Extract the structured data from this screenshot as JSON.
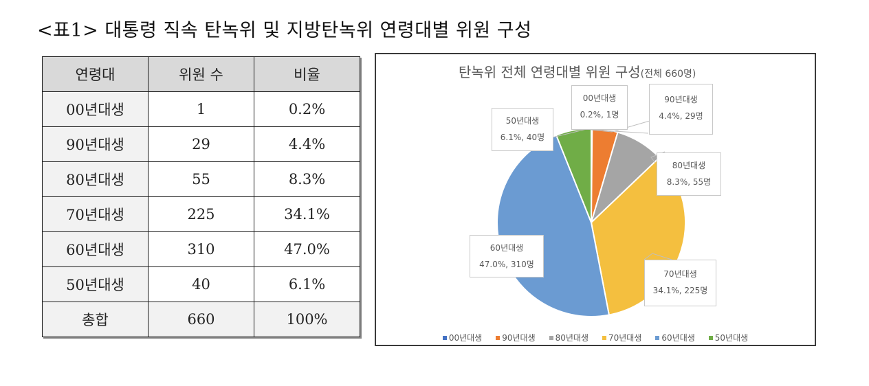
{
  "caption": "<표1> 대통령 직속 탄녹위 및 지방탄녹위 연령대별 위원 구성",
  "table": {
    "headers": [
      "연령대",
      "위원 수",
      "비율"
    ],
    "rows": [
      [
        "00년대생",
        "1",
        "0.2%"
      ],
      [
        "90년대생",
        "29",
        "4.4%"
      ],
      [
        "80년대생",
        "55",
        "8.3%"
      ],
      [
        "70년대생",
        "225",
        "34.1%"
      ],
      [
        "60년대생",
        "310",
        "47.0%"
      ],
      [
        "50년대생",
        "40",
        "6.1%"
      ],
      [
        "총합",
        "660",
        "100%"
      ]
    ]
  },
  "chart": {
    "title": "탄녹위 전체 연령대별 위원 구성",
    "subtitle": "(전체 660명)",
    "labels": [
      {
        "name": "00년대생",
        "value_text": "0.2%, 1명"
      },
      {
        "name": "90년대생",
        "value_text": "4.4%, 29명"
      },
      {
        "name": "80년대생",
        "value_text": "8.3%, 55명"
      },
      {
        "name": "70년대생",
        "value_text": "34.1%, 225명"
      },
      {
        "name": "60년대생",
        "value_text": "47.0%, 310명"
      },
      {
        "name": "50년대생",
        "value_text": "6.1%, 40명"
      }
    ],
    "legend": [
      "00년대생",
      "90년대생",
      "80년대생",
      "70년대생",
      "60년대생",
      "50년대생"
    ],
    "colors": [
      "#4472c4",
      "#ed7d31",
      "#a5a5a5",
      "#f4bf3f",
      "#6b9bd2",
      "#70ad47"
    ]
  },
  "chart_data": {
    "type": "pie",
    "title": "탄녹위 전체 연령대별 위원 구성(전체 660명)",
    "categories": [
      "00년대생",
      "90년대생",
      "80년대생",
      "70년대생",
      "60년대생",
      "50년대생"
    ],
    "values": [
      1,
      29,
      55,
      225,
      310,
      40
    ],
    "percentages": [
      0.2,
      4.4,
      8.3,
      34.1,
      47.0,
      6.1
    ],
    "total": 660,
    "colors": [
      "#4472c4",
      "#ed7d31",
      "#a5a5a5",
      "#f4bf3f",
      "#6b9bd2",
      "#70ad47"
    ],
    "start_angle": "12 o'clock, clockwise",
    "legend_position": "bottom"
  }
}
